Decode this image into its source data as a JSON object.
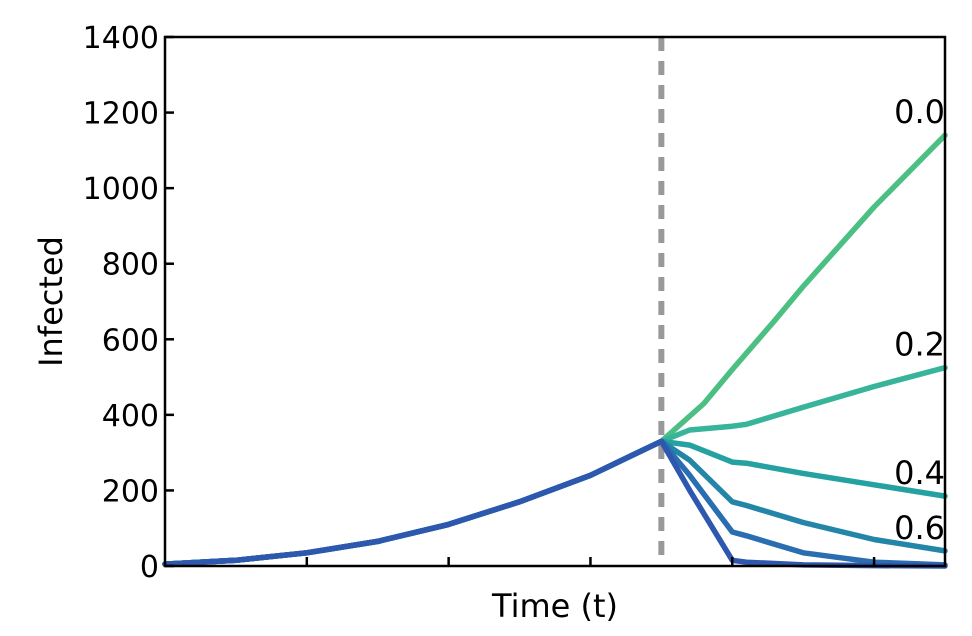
{
  "chart_data": {
    "type": "line",
    "xlabel": "Time (t)",
    "ylabel": "Infected",
    "xlim": [
      0,
      55
    ],
    "ylim": [
      0,
      1400
    ],
    "y_ticks": [
      0,
      200,
      400,
      600,
      800,
      1000,
      1200,
      1400
    ],
    "x_ticks": [
      10,
      20,
      30,
      40,
      50
    ],
    "x_tick_labels_shown": false,
    "grid": false,
    "legend": "none",
    "intervention_marker": {
      "x": 35,
      "style": "dashed",
      "color": "#999999"
    },
    "shared_prefix": {
      "x": [
        0,
        5,
        10,
        15,
        20,
        25,
        30,
        35
      ],
      "y": [
        5,
        15,
        35,
        65,
        110,
        170,
        240,
        330
      ]
    },
    "series": [
      {
        "name": "0.0",
        "color": "#4cbf83",
        "x": [
          35,
          38,
          40,
          43,
          45,
          50,
          55
        ],
        "y": [
          330,
          430,
          520,
          650,
          740,
          950,
          1140
        ]
      },
      {
        "name": "0.2",
        "color": "#37b49a",
        "x": [
          35,
          37,
          40,
          41,
          45,
          50,
          55
        ],
        "y": [
          330,
          360,
          370,
          375,
          420,
          475,
          525
        ]
      },
      {
        "name": "0.4",
        "color": "#25a1a1",
        "x": [
          35,
          37,
          40,
          41,
          45,
          50,
          55
        ],
        "y": [
          330,
          320,
          275,
          272,
          245,
          215,
          185
        ]
      },
      {
        "name": "0.6",
        "color": "#2385a8",
        "x": [
          35,
          37,
          40,
          41,
          45,
          50,
          55
        ],
        "y": [
          330,
          280,
          170,
          160,
          115,
          70,
          40
        ]
      },
      {
        "color": "#2a6db0",
        "x": [
          35,
          37,
          40,
          41,
          45,
          50,
          55
        ],
        "y": [
          330,
          240,
          90,
          80,
          35,
          10,
          3
        ]
      },
      {
        "color": "#2e57ae",
        "x": [
          35,
          37,
          40,
          41,
          45,
          50,
          55
        ],
        "y": [
          330,
          200,
          15,
          10,
          3,
          1,
          0
        ]
      }
    ]
  }
}
